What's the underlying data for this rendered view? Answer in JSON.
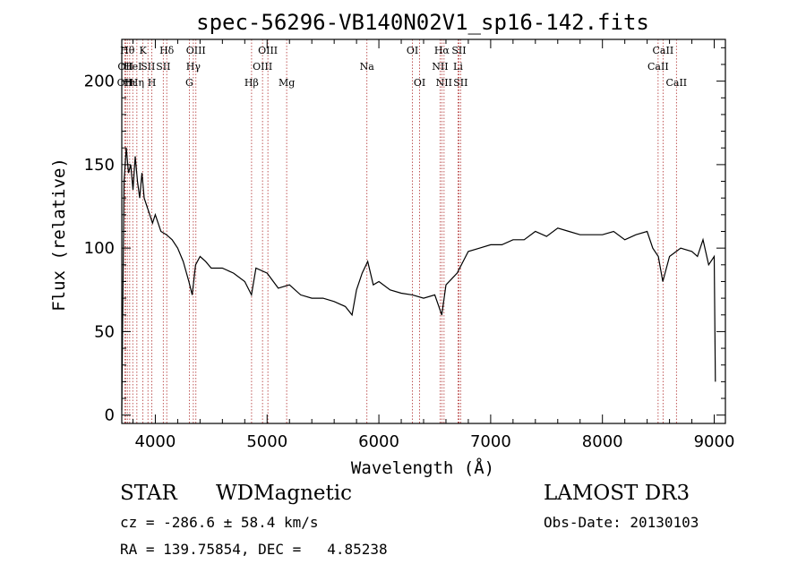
{
  "chart_data": {
    "type": "line",
    "title": "spec-56296-VB140N02V1_sp16-142.fits",
    "xlabel": "Wavelength (Å)",
    "ylabel": "Flux (relative)",
    "xlim": [
      3700,
      9100
    ],
    "ylim": [
      -5,
      225
    ],
    "xticks": [
      4000,
      5000,
      6000,
      7000,
      8000,
      9000
    ],
    "yticks": [
      0,
      50,
      100,
      150,
      200
    ],
    "grid": false,
    "line_color": "#000000",
    "marker_color": "#b03030",
    "series": [
      {
        "x": [
          3700,
          3720,
          3740,
          3760,
          3780,
          3800,
          3820,
          3840,
          3860,
          3880,
          3900,
          3925,
          3950,
          3975,
          4000,
          4050,
          4100,
          4150,
          4200,
          4250,
          4300,
          4330,
          4360,
          4400,
          4450,
          4500,
          4600,
          4700,
          4800,
          4860,
          4900,
          5000,
          5100,
          5200,
          5300,
          5400,
          5500,
          5600,
          5700,
          5760,
          5800,
          5850,
          5900,
          5950,
          6000,
          6100,
          6200,
          6300,
          6400,
          6500,
          6563,
          6600,
          6700,
          6800,
          6900,
          7000,
          7100,
          7200,
          7300,
          7400,
          7500,
          7600,
          7700,
          7800,
          7900,
          8000,
          8100,
          8200,
          8300,
          8400,
          8450,
          8500,
          8540,
          8600,
          8700,
          8800,
          8850,
          8900,
          8950,
          9000,
          9010
        ],
        "y": [
          3,
          140,
          160,
          145,
          150,
          135,
          155,
          140,
          130,
          145,
          130,
          125,
          120,
          115,
          120,
          110,
          108,
          105,
          100,
          92,
          80,
          72,
          90,
          95,
          92,
          88,
          88,
          85,
          80,
          72,
          88,
          85,
          76,
          78,
          72,
          70,
          70,
          68,
          65,
          60,
          75,
          85,
          92,
          78,
          80,
          75,
          73,
          72,
          70,
          72,
          60,
          78,
          85,
          98,
          100,
          102,
          102,
          105,
          105,
          110,
          107,
          112,
          110,
          108,
          108,
          108,
          110,
          105,
          108,
          110,
          100,
          95,
          80,
          95,
          100,
          98,
          95,
          105,
          90,
          95,
          20
        ]
      }
    ],
    "lines": [
      {
        "wl": 3728,
        "label": "OII",
        "row": 2,
        "color": "#8b0000"
      },
      {
        "wl": 3734,
        "label": "OII",
        "row": 1,
        "color": "#8b0000"
      },
      {
        "wl": 3750,
        "label": "Hθ",
        "row": 0,
        "color": "#8b0000"
      },
      {
        "wl": 3771,
        "label": "Hι",
        "row": 2,
        "color": "#8b0000"
      },
      {
        "wl": 3798,
        "label": "HeI",
        "row": 1,
        "color": "#8b0000"
      },
      {
        "wl": 3835,
        "label": "Hη",
        "row": 2,
        "color": "#8b0000"
      },
      {
        "wl": 3889,
        "label": "K",
        "row": 0,
        "color": "#8b0000"
      },
      {
        "wl": 3934,
        "label": "SII",
        "row": 1,
        "color": "#8b0000"
      },
      {
        "wl": 3969,
        "label": "H",
        "row": 2,
        "color": "#8b0000"
      },
      {
        "wl": 4102,
        "label": "Hδ",
        "row": 0,
        "color": "#8b0000"
      },
      {
        "wl": 4071,
        "label": "SII",
        "row": 1,
        "color": "#8b0000"
      },
      {
        "wl": 4304,
        "label": "G",
        "row": 2,
        "color": "#8b0000"
      },
      {
        "wl": 4340,
        "label": "Hγ",
        "row": 1,
        "color": "#8b0000"
      },
      {
        "wl": 4363,
        "label": "OIII",
        "row": 0,
        "color": "#8b0000"
      },
      {
        "wl": 4861,
        "label": "Hβ",
        "row": 2,
        "color": "#8b0000"
      },
      {
        "wl": 4959,
        "label": "OIII",
        "row": 1,
        "color": "#8b0000"
      },
      {
        "wl": 5007,
        "label": "OIII",
        "row": 0,
        "color": "#8b0000"
      },
      {
        "wl": 5175,
        "label": "Mg",
        "row": 2,
        "color": "#8b0000"
      },
      {
        "wl": 5893,
        "label": "Na",
        "row": 1,
        "color": "#8b0000"
      },
      {
        "wl": 6300,
        "label": "OI",
        "row": 0,
        "color": "#8b0000"
      },
      {
        "wl": 6364,
        "label": "OI",
        "row": 2,
        "color": "#8b0000"
      },
      {
        "wl": 6548,
        "label": "NII",
        "row": 1,
        "color": "#8b0000"
      },
      {
        "wl": 6563,
        "label": "Hα",
        "row": 0,
        "color": "#8b0000"
      },
      {
        "wl": 6583,
        "label": "NII",
        "row": 2,
        "color": "#8b0000"
      },
      {
        "wl": 6708,
        "label": "Li",
        "row": 1,
        "color": "#8b0000"
      },
      {
        "wl": 6716,
        "label": "SII",
        "row": 0,
        "color": "#8b0000"
      },
      {
        "wl": 6731,
        "label": "SII",
        "row": 2,
        "color": "#8b0000"
      },
      {
        "wl": 8498,
        "label": "CaII",
        "row": 1,
        "color": "#8b0000"
      },
      {
        "wl": 8542,
        "label": "CaII",
        "row": 0,
        "color": "#8b0000"
      },
      {
        "wl": 8662,
        "label": "CaII",
        "row": 2,
        "color": "#8b0000"
      }
    ]
  },
  "info": {
    "class": "STAR",
    "subclass": "WDMagnetic",
    "survey": "LAMOST DR3",
    "cz": "cz = -286.6 ± 58.4 km/s",
    "obsdate": "Obs-Date: 20130103",
    "radec": "RA = 139.75854, DEC =   4.85238"
  }
}
